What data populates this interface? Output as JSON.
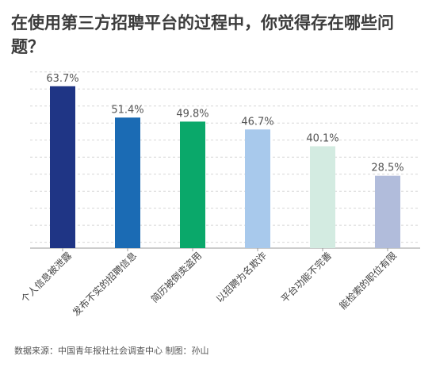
{
  "title": "在使用第三方招聘平台的过程中，你觉得存在哪些问题？",
  "footer": "数据来源：中国青年报社社会调查中心 制图：孙山",
  "chart_data": {
    "type": "bar",
    "title": "在使用第三方招聘平台的过程中，你觉得存在哪些问题？",
    "categories": [
      "个人信息被泄露",
      "发布不实的招聘信息",
      "简历被倒卖盗用",
      "以招聘为名欺诈",
      "平台功能不完善",
      "能检索的职位有限"
    ],
    "values": [
      63.7,
      51.4,
      49.8,
      46.7,
      40.1,
      28.5
    ],
    "value_labels": [
      "63.7%",
      "51.4%",
      "49.8%",
      "46.7%",
      "40.1%",
      "28.5%"
    ],
    "unit": "%",
    "colors": [
      "#1f3585",
      "#1b6bb4",
      "#0aa86a",
      "#a8c9ec",
      "#d3ebe1",
      "#b1bcdb"
    ],
    "ylim": [
      0,
      70
    ],
    "grid": true,
    "legend": "none"
  }
}
